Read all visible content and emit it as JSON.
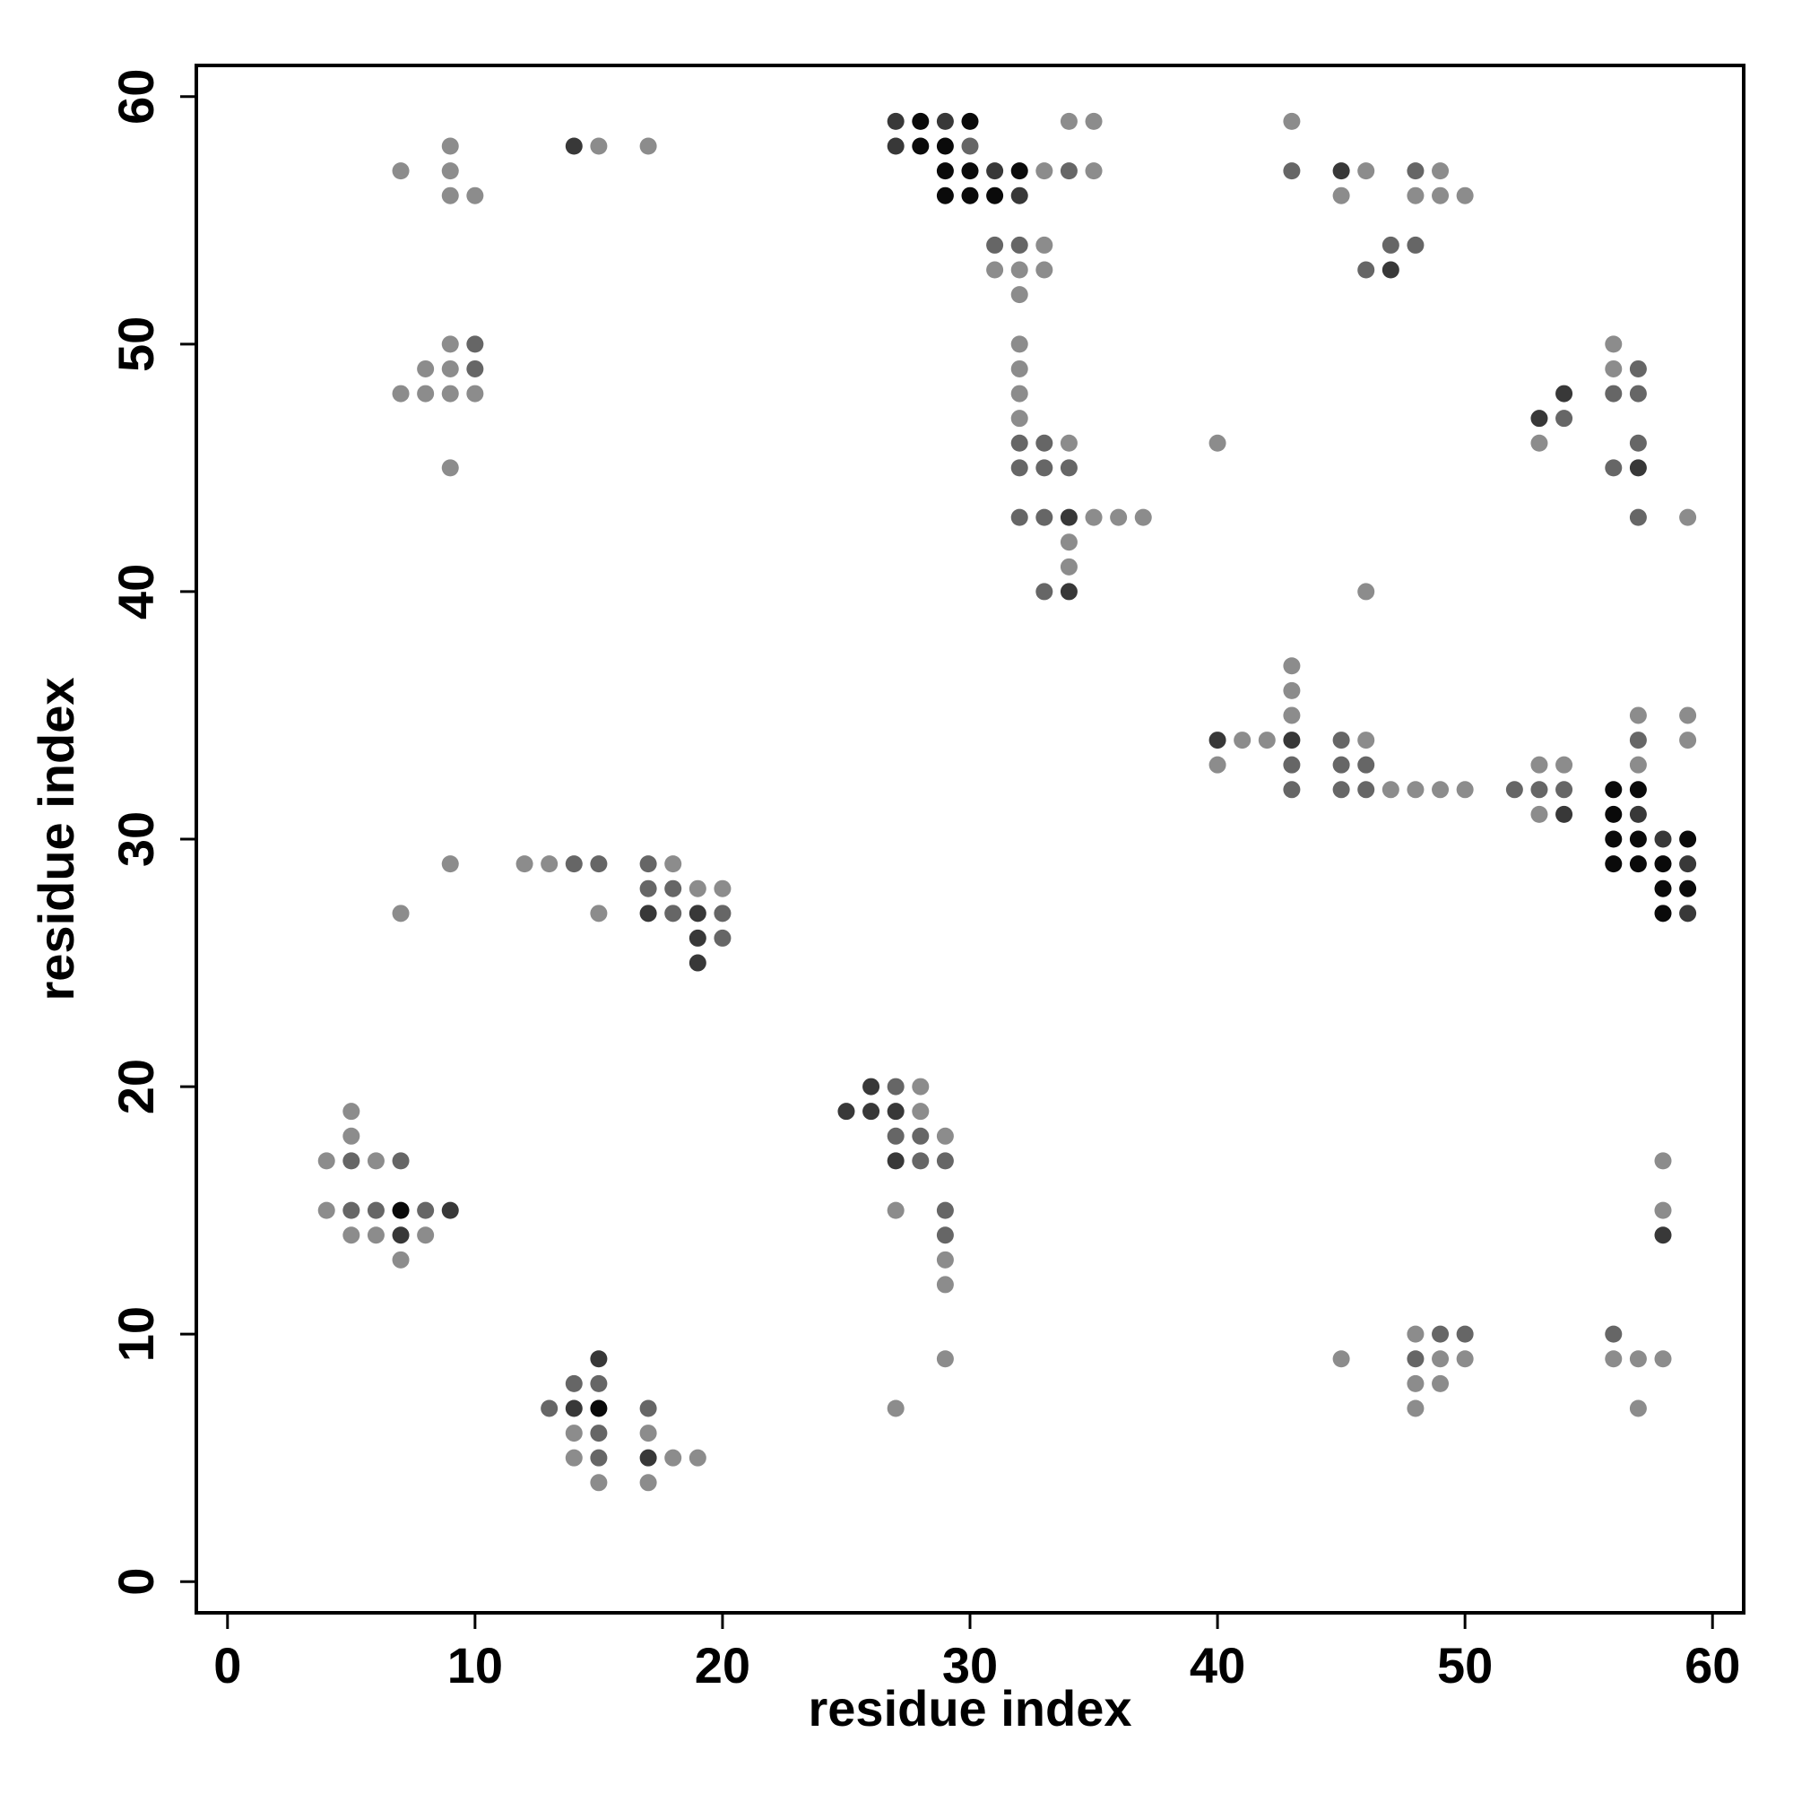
{
  "chart_data": {
    "type": "scatter",
    "x_label": "residue index",
    "y_label": "residue index",
    "xlim": [
      -1.26,
      61.26
    ],
    "ylim": [
      -1.26,
      61.26
    ],
    "xticks": [
      0,
      10,
      20,
      30,
      40,
      50,
      60
    ],
    "yticks": [
      0,
      10,
      20,
      30,
      40,
      50,
      60
    ],
    "series": [
      {
        "color": "#8c8c8c",
        "x": [
          34,
          35,
          43,
          9,
          15,
          17,
          7,
          9,
          33,
          35,
          46,
          49,
          9,
          10,
          45,
          48,
          49,
          50,
          33,
          31,
          32,
          33,
          32,
          9,
          32,
          56,
          8,
          9,
          32,
          56,
          7,
          8,
          9,
          10,
          32,
          32,
          34,
          40,
          53,
          9,
          35,
          36,
          37,
          59,
          34,
          34,
          46,
          43,
          43,
          43,
          57,
          59,
          41,
          42,
          46,
          59,
          40,
          53,
          54,
          57,
          47,
          48,
          49,
          50,
          53,
          9,
          12,
          13,
          18,
          19,
          20,
          7,
          15,
          28,
          5,
          28,
          5,
          29,
          4,
          6,
          58,
          4,
          27,
          58,
          5,
          6,
          8,
          7,
          29,
          29,
          48,
          29,
          45,
          49,
          50,
          56,
          57,
          58,
          48,
          49,
          27,
          48,
          57,
          14,
          17,
          14,
          18,
          19,
          15,
          17
        ],
        "y": [
          59,
          59,
          59,
          58,
          58,
          58,
          57,
          57,
          57,
          57,
          57,
          57,
          56,
          56,
          56,
          56,
          56,
          56,
          54,
          53,
          53,
          53,
          52,
          50,
          50,
          50,
          49,
          49,
          49,
          49,
          48,
          48,
          48,
          48,
          48,
          47,
          46,
          46,
          46,
          45,
          43,
          43,
          43,
          43,
          42,
          41,
          40,
          37,
          36,
          35,
          35,
          35,
          34,
          34,
          34,
          34,
          33,
          33,
          33,
          33,
          32,
          32,
          32,
          32,
          31,
          29,
          29,
          29,
          29,
          28,
          28,
          27,
          27,
          20,
          19,
          19,
          18,
          18,
          17,
          17,
          17,
          15,
          15,
          15,
          14,
          14,
          14,
          13,
          13,
          12,
          10,
          9,
          9,
          9,
          9,
          9,
          9,
          9,
          8,
          8,
          7,
          7,
          7,
          6,
          6,
          5,
          5,
          5,
          4,
          4
        ]
      },
      {
        "color": "#666666",
        "x": [
          30,
          34,
          43,
          48,
          31,
          32,
          47,
          48,
          46,
          10,
          10,
          57,
          56,
          57,
          54,
          32,
          33,
          57,
          32,
          33,
          34,
          56,
          32,
          33,
          57,
          33,
          45,
          57,
          43,
          45,
          46,
          43,
          45,
          46,
          52,
          53,
          54,
          14,
          15,
          17,
          17,
          18,
          18,
          20,
          20,
          27,
          27,
          28,
          5,
          7,
          28,
          29,
          5,
          6,
          8,
          29,
          29,
          49,
          50,
          56,
          48,
          14,
          15,
          13,
          17,
          15,
          15
        ],
        "y": [
          58,
          57,
          57,
          57,
          54,
          54,
          54,
          54,
          53,
          50,
          49,
          49,
          48,
          48,
          47,
          46,
          46,
          46,
          45,
          45,
          45,
          45,
          43,
          43,
          43,
          40,
          34,
          34,
          33,
          33,
          33,
          32,
          32,
          32,
          32,
          32,
          32,
          29,
          29,
          29,
          28,
          28,
          27,
          27,
          26,
          20,
          18,
          18,
          17,
          17,
          17,
          17,
          15,
          15,
          15,
          15,
          14,
          10,
          10,
          10,
          9,
          8,
          8,
          7,
          7,
          6,
          5
        ]
      },
      {
        "color": "#383838",
        "x": [
          27,
          29,
          14,
          27,
          31,
          45,
          32,
          47,
          54,
          53,
          57,
          34,
          34,
          40,
          43,
          54,
          57,
          58,
          59,
          17,
          19,
          59,
          19,
          19,
          26,
          25,
          26,
          27,
          27,
          9,
          7,
          58,
          15,
          14,
          17
        ],
        "y": [
          59,
          59,
          58,
          58,
          57,
          57,
          56,
          53,
          48,
          47,
          45,
          43,
          40,
          34,
          34,
          31,
          31,
          30,
          29,
          27,
          27,
          27,
          26,
          25,
          20,
          19,
          19,
          19,
          17,
          15,
          14,
          14,
          9,
          7,
          5
        ]
      },
      {
        "color": "#0a0a0a",
        "x": [
          28,
          30,
          28,
          29,
          29,
          30,
          32,
          29,
          30,
          31,
          56,
          57,
          56,
          56,
          57,
          59,
          56,
          57,
          58,
          58,
          59,
          58,
          7,
          15
        ],
        "y": [
          59,
          59,
          58,
          58,
          57,
          57,
          57,
          56,
          56,
          56,
          32,
          32,
          31,
          30,
          30,
          30,
          29,
          29,
          29,
          28,
          28,
          27,
          15,
          7
        ]
      }
    ]
  }
}
